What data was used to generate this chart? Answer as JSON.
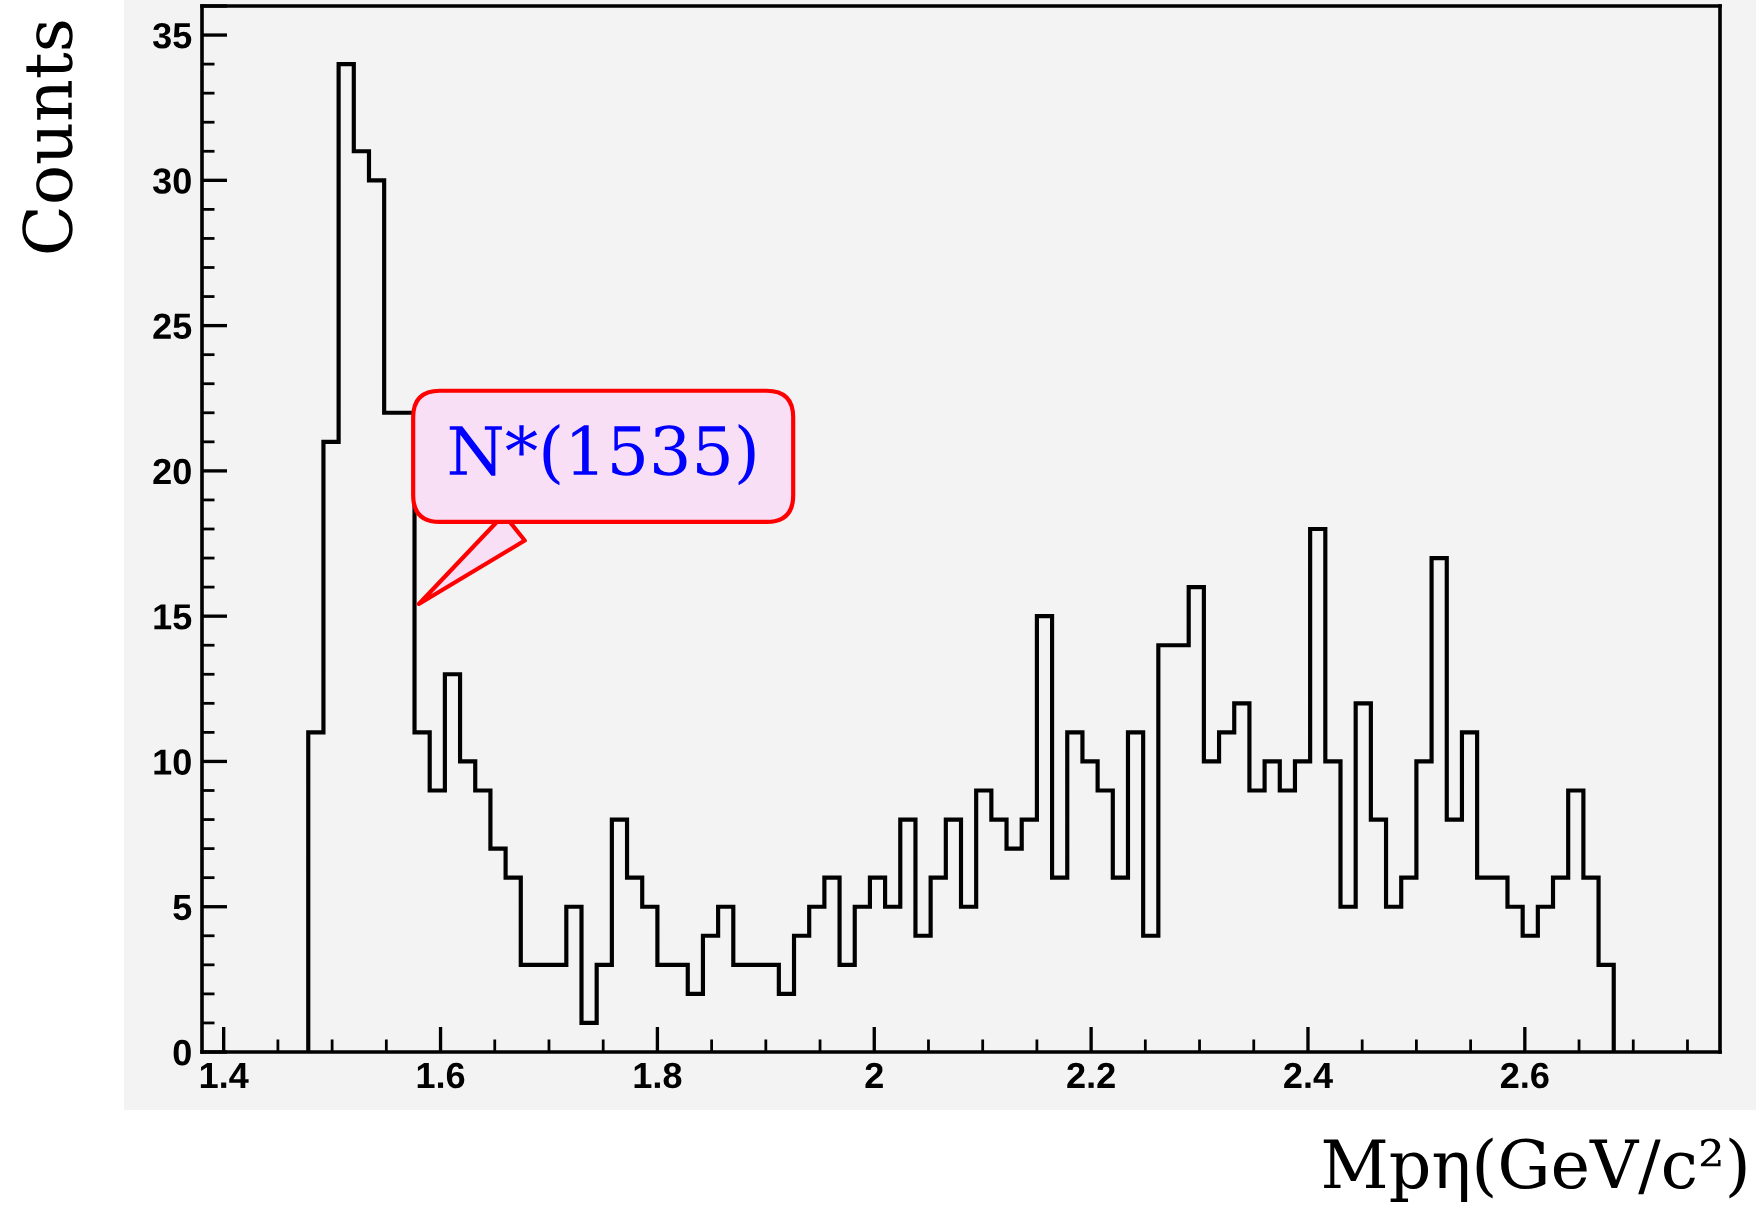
{
  "chart_data": {
    "type": "histogram",
    "xlabel": "Mpη(GeV/c²)",
    "ylabel": "Counts",
    "color": "#000000",
    "bins": [
      1.478,
      1.492,
      1.506,
      1.52,
      1.534,
      1.548,
      1.562,
      1.576,
      1.59,
      1.604,
      1.618,
      1.632,
      1.646,
      1.66,
      1.674,
      1.688,
      1.702,
      1.716,
      1.73,
      1.744,
      1.758,
      1.772,
      1.786,
      1.8,
      1.814,
      1.828,
      1.842,
      1.856,
      1.87,
      1.884,
      1.898,
      1.912,
      1.926,
      1.94,
      1.954,
      1.968,
      1.982,
      1.996,
      2.01,
      2.024,
      2.038,
      2.052,
      2.066,
      2.08,
      2.094,
      2.108,
      2.122,
      2.136,
      2.15,
      2.164,
      2.178,
      2.192,
      2.206,
      2.22,
      2.234,
      2.248,
      2.262,
      2.276,
      2.29,
      2.304,
      2.318,
      2.332,
      2.346,
      2.36,
      2.374,
      2.388,
      2.402,
      2.416,
      2.43,
      2.444,
      2.458,
      2.472,
      2.486,
      2.5,
      2.514,
      2.528,
      2.542,
      2.556,
      2.57,
      2.584,
      2.598,
      2.612,
      2.626,
      2.64,
      2.654,
      2.668,
      2.682
    ],
    "values": [
      11,
      21,
      34,
      31,
      30,
      22,
      22,
      11,
      9,
      13,
      10,
      9,
      7,
      6,
      3,
      3,
      3,
      5,
      1,
      3,
      8,
      6,
      5,
      3,
      3,
      2,
      4,
      5,
      3,
      3,
      3,
      2,
      4,
      5,
      6,
      3,
      5,
      6,
      5,
      8,
      4,
      6,
      8,
      5,
      9,
      8,
      7,
      8,
      15,
      6,
      11,
      10,
      9,
      6,
      11,
      4,
      14,
      14,
      16,
      10,
      11,
      12,
      9,
      10,
      9,
      10,
      18,
      10,
      5,
      12,
      8,
      5,
      6,
      10,
      17,
      8,
      11,
      6,
      6,
      5,
      4,
      5,
      6,
      9,
      6,
      3
    ],
    "xlim": [
      1.38,
      2.78
    ],
    "ylim": [
      0,
      36
    ],
    "xticks": [
      1.4,
      1.6,
      1.8,
      2,
      2.2,
      2.4,
      2.6
    ],
    "yticks": [
      0,
      5,
      10,
      15,
      20,
      25,
      30,
      35,
      {
        "value": 36,
        "label": null
      }
    ],
    "grid": false,
    "legend": false,
    "annotations": [
      {
        "text": "N*(1535)",
        "x": 1.576,
        "y": 15.3
      }
    ]
  }
}
